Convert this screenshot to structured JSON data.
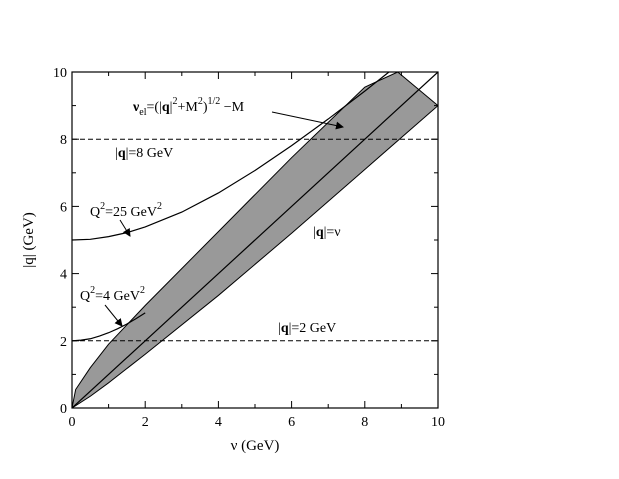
{
  "chart_data": {
    "type": "line",
    "title": "",
    "xlabel": "ν (GeV)",
    "ylabel": "|q| (GeV)",
    "xlim": [
      0,
      10
    ],
    "ylim": [
      0,
      10
    ],
    "xticks": [
      "0",
      "2",
      "4",
      "6",
      "8",
      "10"
    ],
    "yticks": [
      "0",
      "2",
      "4",
      "6",
      "8",
      "10"
    ],
    "grid": false,
    "band": {
      "name": "",
      "fill": "#999999",
      "lower": {
        "x": [
          0,
          0.5,
          1,
          2,
          4,
          6,
          8,
          10
        ],
        "y": [
          0,
          0.35,
          0.75,
          1.6,
          3.35,
          5.2,
          7.1,
          9.0
        ]
      },
      "upper": {
        "x": [
          0,
          0.1,
          0.5,
          1,
          2,
          4,
          6,
          8,
          8.9
        ],
        "y": [
          0,
          0.55,
          1.2,
          1.9,
          3.05,
          5.25,
          7.45,
          9.55,
          10
        ]
      }
    },
    "series": [
      {
        "id": "q-eq-nu",
        "style": "solid",
        "x": [
          0,
          10
        ],
        "y": [
          0,
          10
        ]
      },
      {
        "id": "q2-25",
        "style": "solid",
        "x": [
          0,
          0.5,
          1,
          1.5,
          2,
          3,
          4,
          5,
          6,
          7,
          8,
          8.66
        ],
        "y": [
          5,
          5.02,
          5.1,
          5.22,
          5.39,
          5.83,
          6.4,
          7.07,
          7.81,
          8.6,
          9.43,
          10
        ]
      },
      {
        "id": "q2-4",
        "style": "solid",
        "x": [
          0,
          0.25,
          0.5,
          0.75,
          1,
          1.25,
          1.5,
          1.75,
          2
        ],
        "y": [
          2,
          2.02,
          2.06,
          2.14,
          2.24,
          2.36,
          2.5,
          2.66,
          2.83
        ]
      },
      {
        "id": "q-8",
        "style": "dashed",
        "x": [
          0,
          10
        ],
        "y": [
          8,
          8
        ]
      },
      {
        "id": "q-2",
        "style": "dashed",
        "x": [
          0,
          10
        ],
        "y": [
          2,
          2
        ]
      }
    ],
    "annotations": [
      {
        "id": "nu-el",
        "text": "ν_el=(|q|²+M²)^{1/2} −M",
        "parts": {
          "nu": "ν",
          "sub_el": "el",
          "eq_open": "=(|",
          "q": "q",
          "pipe": "|",
          "sup2a": "2",
          "plus_m": "+M",
          "sup2b": "2",
          "close": ")",
          "sup_half": "1/2",
          "minus_m": " −M"
        }
      },
      {
        "id": "q8",
        "text": "|q|=8 GeV",
        "parts": {
          "pipe1": "|",
          "q": "q",
          "rest": "|=8 GeV"
        }
      },
      {
        "id": "qnu",
        "text": "|q|=ν",
        "parts": {
          "pipe1": "|",
          "q": "q",
          "rest": "|=ν"
        }
      },
      {
        "id": "q2-25",
        "text": "Q²=25 GeV²",
        "parts": {
          "Q": "Q",
          "sup": "2",
          "mid": "=25 GeV",
          "sup2": "2"
        }
      },
      {
        "id": "q2-4",
        "text": "Q²=4 GeV²",
        "parts": {
          "Q": "Q",
          "sup": "2",
          "mid": "=4 GeV",
          "sup2": "2"
        }
      },
      {
        "id": "q2",
        "text": "|q|=2 GeV",
        "parts": {
          "pipe1": "|",
          "q": "q",
          "rest": "|=2 GeV"
        }
      }
    ]
  }
}
